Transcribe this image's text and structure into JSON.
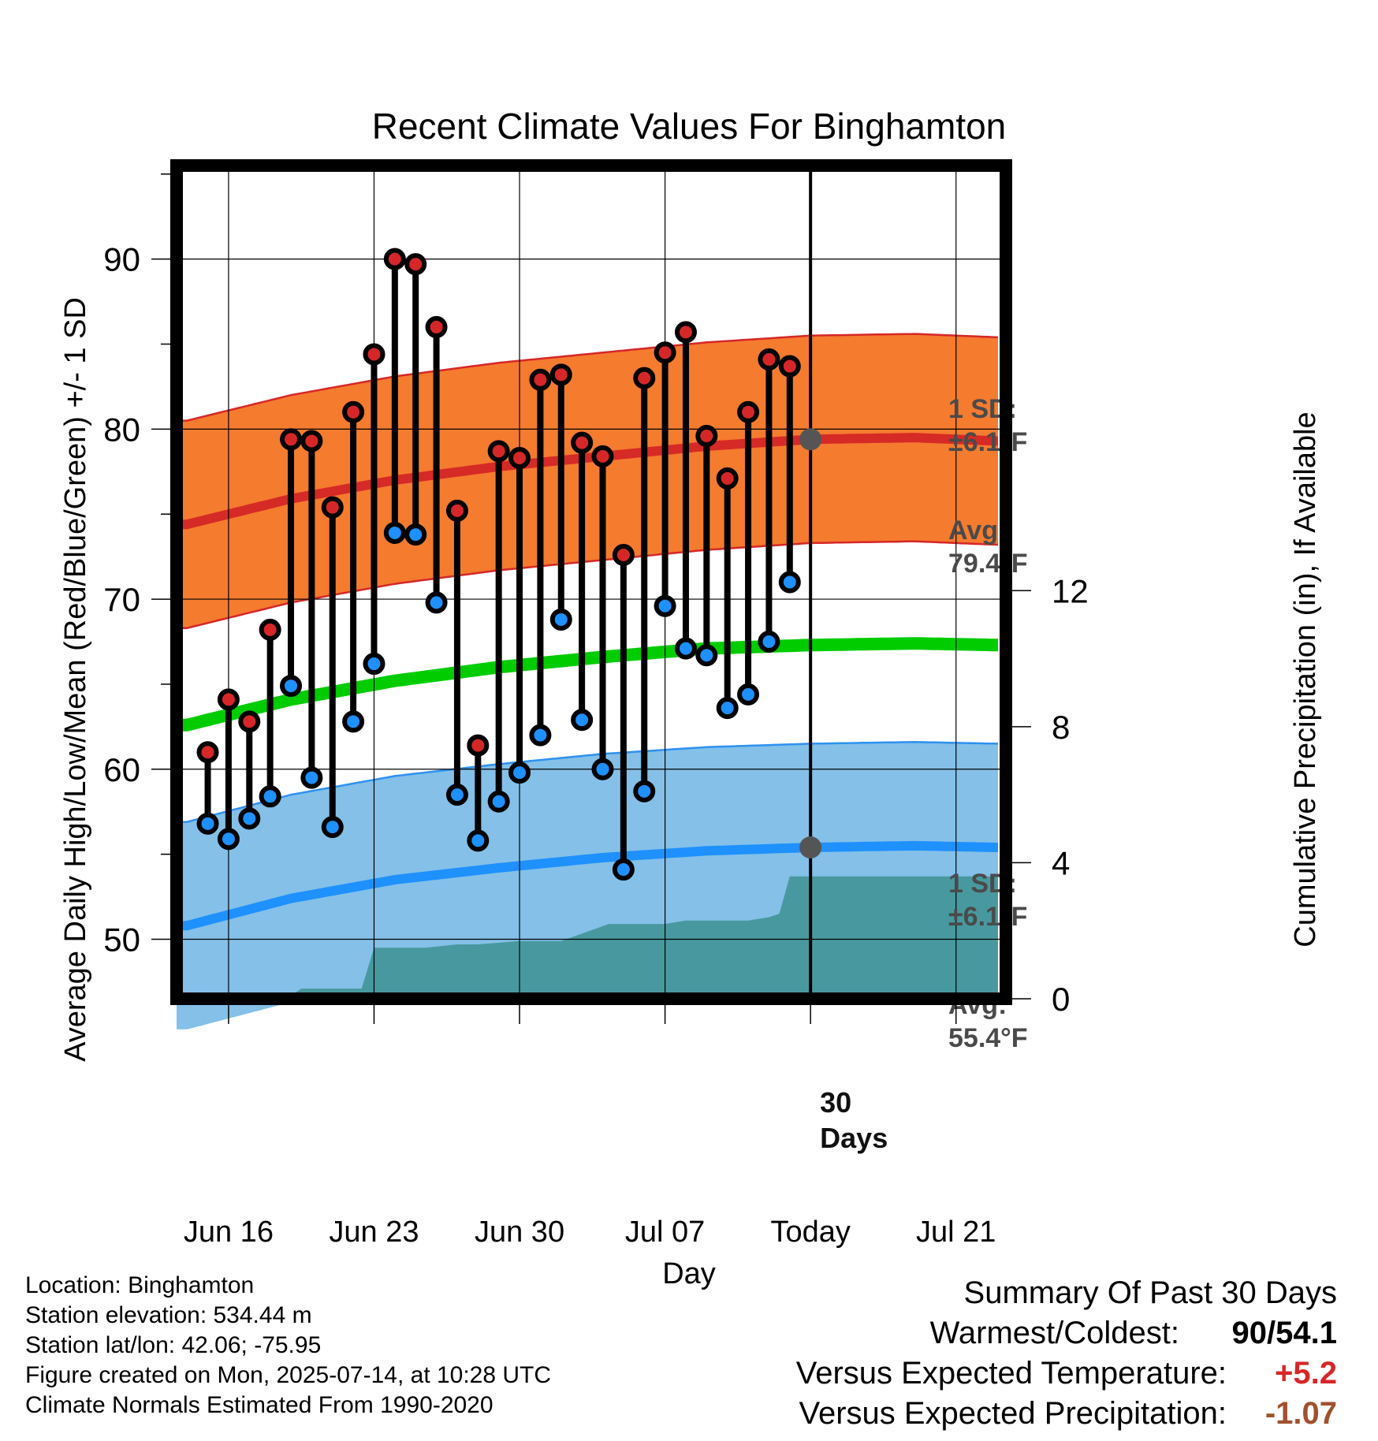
{
  "chart_data": {
    "type": "line",
    "title": "Recent Climate Values For Binghamton",
    "xlabel": "Day",
    "ylabel": "Average Daily High/Low/Mean (Red/Blue/Green) +/- 1 SD",
    "y2label": "Cumulative Precipitation (in), If Available",
    "x_tick_labels": [
      "Jun 16",
      "Jun 23",
      "Jun 30",
      "Jul 07",
      "Today",
      "Jul 21"
    ],
    "x_tick_days": [
      2,
      9,
      16,
      23,
      30,
      37
    ],
    "xlim": [
      -0.5,
      39.4
    ],
    "ylim": [
      46.5,
      95.5
    ],
    "y_ticks": [
      50,
      60,
      70,
      80,
      90
    ],
    "y_tick_labels": [
      "50",
      "60",
      "70",
      "80",
      "90"
    ],
    "y2lim": [
      0,
      24.5
    ],
    "y2_ticks": [
      0,
      4,
      8,
      12
    ],
    "y2_tick_labels": [
      "0",
      "4",
      "8",
      "12"
    ],
    "grid": true,
    "today_day": 30,
    "colors": {
      "high_band": "#f57b2e",
      "high_edge": "#d62728",
      "high_avg": "#d62a26",
      "low_band": "#84c0e8",
      "low_edge": "#2e91f0",
      "low_avg": "#1e90ff",
      "mean": "#00cc00",
      "precip": "#48999f",
      "high_dot": "#d62728",
      "low_dot": "#1e90ff",
      "today_dot": "#555555"
    },
    "normals": {
      "days": [
        0,
        5,
        10,
        15,
        20,
        25,
        30,
        35,
        39
      ],
      "high_avg": [
        74.4,
        75.9,
        77.0,
        77.8,
        78.4,
        79.0,
        79.4,
        79.5,
        79.3
      ],
      "low_avg": [
        50.8,
        52.4,
        53.5,
        54.2,
        54.8,
        55.2,
        55.4,
        55.5,
        55.4
      ],
      "mean_avg": [
        62.6,
        64.1,
        65.2,
        66.0,
        66.6,
        67.1,
        67.3,
        67.4,
        67.3
      ],
      "sd": 6.1
    },
    "series": [
      {
        "name": "High",
        "days": [
          1,
          2,
          3,
          4,
          5,
          6,
          7,
          8,
          9,
          10,
          11,
          12,
          13,
          14,
          15,
          16,
          17,
          18,
          19,
          20,
          21,
          22,
          23,
          24,
          25,
          26,
          27,
          28,
          29
        ],
        "values": [
          61.0,
          64.1,
          62.8,
          68.2,
          79.4,
          79.3,
          75.4,
          81.0,
          84.4,
          90.0,
          89.7,
          86.0,
          75.2,
          61.4,
          78.7,
          78.3,
          82.9,
          83.2,
          79.2,
          78.4,
          72.6,
          83.0,
          84.5,
          85.7,
          79.6,
          77.1,
          81.0,
          84.1,
          83.7
        ]
      },
      {
        "name": "Low",
        "days": [
          1,
          2,
          3,
          4,
          5,
          6,
          7,
          8,
          9,
          10,
          11,
          12,
          13,
          14,
          15,
          16,
          17,
          18,
          19,
          20,
          21,
          22,
          23,
          24,
          25,
          26,
          27,
          28,
          29
        ],
        "values": [
          56.8,
          55.9,
          57.1,
          58.4,
          64.9,
          59.5,
          56.6,
          62.8,
          66.2,
          73.9,
          73.8,
          69.8,
          58.5,
          55.8,
          58.1,
          59.8,
          62.0,
          68.8,
          62.9,
          60.0,
          54.1,
          58.7,
          69.6,
          67.1,
          66.7,
          63.6,
          64.4,
          67.5,
          71.0
        ]
      },
      {
        "name": "Cumulative Precipitation",
        "days": [
          -0.5,
          4.8,
          5.5,
          7.0,
          8.4,
          9.0,
          11.0,
          11.5,
          13.0,
          14.0,
          16.0,
          17.0,
          18.0,
          20.3,
          21.0,
          23.0,
          24.0,
          26.0,
          27.0,
          28.0,
          28.5,
          29.0,
          30.0,
          33.0,
          39.4
        ],
        "values": [
          0,
          0,
          0.3,
          0.3,
          0.3,
          1.5,
          1.5,
          1.5,
          1.6,
          1.6,
          1.7,
          1.7,
          1.7,
          2.2,
          2.2,
          2.2,
          2.3,
          2.3,
          2.3,
          2.4,
          2.5,
          3.6,
          3.6,
          3.6,
          3.6
        ]
      }
    ],
    "annotations": {
      "high_sd": [
        "1 SD:",
        "±6.1°F"
      ],
      "high_avg": [
        "Avg:",
        "79.4°F"
      ],
      "low_sd": [
        "1 SD:",
        "±6.1°F"
      ],
      "low_avg": [
        "Avg:",
        "55.4°F"
      ],
      "days": [
        "30",
        "Days"
      ]
    }
  },
  "footer": {
    "location": "Location: Binghamton",
    "elevation": "Station elevation: 534.44 m",
    "latlon": "Station lat/lon: 42.06; -75.95",
    "created": "Figure created on Mon, 2025-07-14, at 10:28 UTC",
    "normals": "Climate Normals Estimated From 1990-2020"
  },
  "summary": {
    "title": "Summary Of Past 30 Days",
    "warmest_label": "Warmest/Coldest:",
    "warmest_value": "90/54.1",
    "temp_label": "Versus Expected Temperature:",
    "temp_value": "+5.2",
    "temp_color": "#d62728",
    "precip_label": "Versus Expected Precipitation:",
    "precip_value": "-1.07",
    "precip_color": "#a0522d"
  }
}
